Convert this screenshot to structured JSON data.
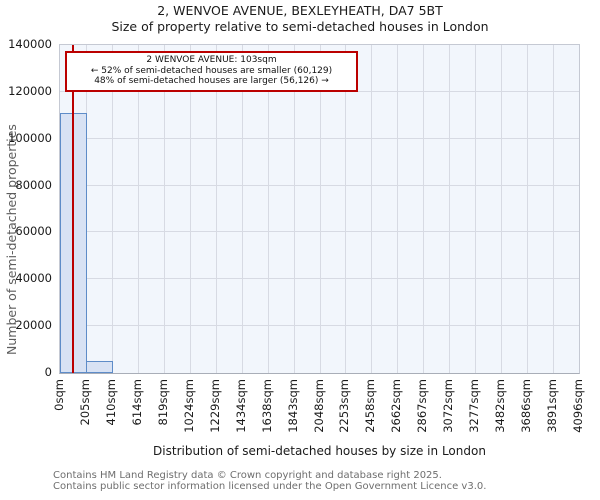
{
  "chart_data": {
    "type": "bar",
    "title": "2, WENVOE AVENUE, BEXLEYHEATH, DA7 5BT",
    "subtitle": "Size of property relative to semi-detached houses in London",
    "xlabel": "Distribution of semi-detached houses by size in London",
    "ylabel": "Number of semi-detached properties",
    "x_tick_labels": [
      "0sqm",
      "205sqm",
      "410sqm",
      "614sqm",
      "819sqm",
      "1024sqm",
      "1229sqm",
      "1434sqm",
      "1638sqm",
      "1843sqm",
      "2048sqm",
      "2253sqm",
      "2458sqm",
      "2662sqm",
      "2867sqm",
      "3072sqm",
      "3277sqm",
      "3482sqm",
      "3686sqm",
      "3891sqm",
      "4096sqm"
    ],
    "y_ticks": [
      0,
      20000,
      40000,
      60000,
      80000,
      100000,
      120000,
      140000
    ],
    "ylim": [
      0,
      140000
    ],
    "xlim_sqm": [
      0,
      4096
    ],
    "n_bins": 20,
    "values": [
      111000,
      5000,
      0,
      0,
      0,
      0,
      0,
      0,
      0,
      0,
      0,
      0,
      0,
      0,
      0,
      0,
      0,
      0,
      0,
      0
    ],
    "marker_sqm": 103,
    "grid": true,
    "legend": "none",
    "colors": {
      "bar_fill": "#d8e2f4",
      "bar_edge": "#5e8cc8",
      "marker": "#bb0000",
      "plot_bg": "#f2f6fc",
      "gridline": "#d7dae3",
      "annotation_border": "#bb0000",
      "footer_text": "#6e6e6e",
      "axis_label_text": "#5c5c5c"
    }
  },
  "annotation": {
    "line1": "2 WENVOE AVENUE: 103sqm",
    "line2": "← 52% of semi-detached houses are smaller (60,129)",
    "line3": "48% of semi-detached houses are larger (56,126) →"
  },
  "footer": {
    "line1": "Contains HM Land Registry data © Crown copyright and database right 2025.",
    "line2": "Contains public sector information licensed under the Open Government Licence v3.0."
  }
}
